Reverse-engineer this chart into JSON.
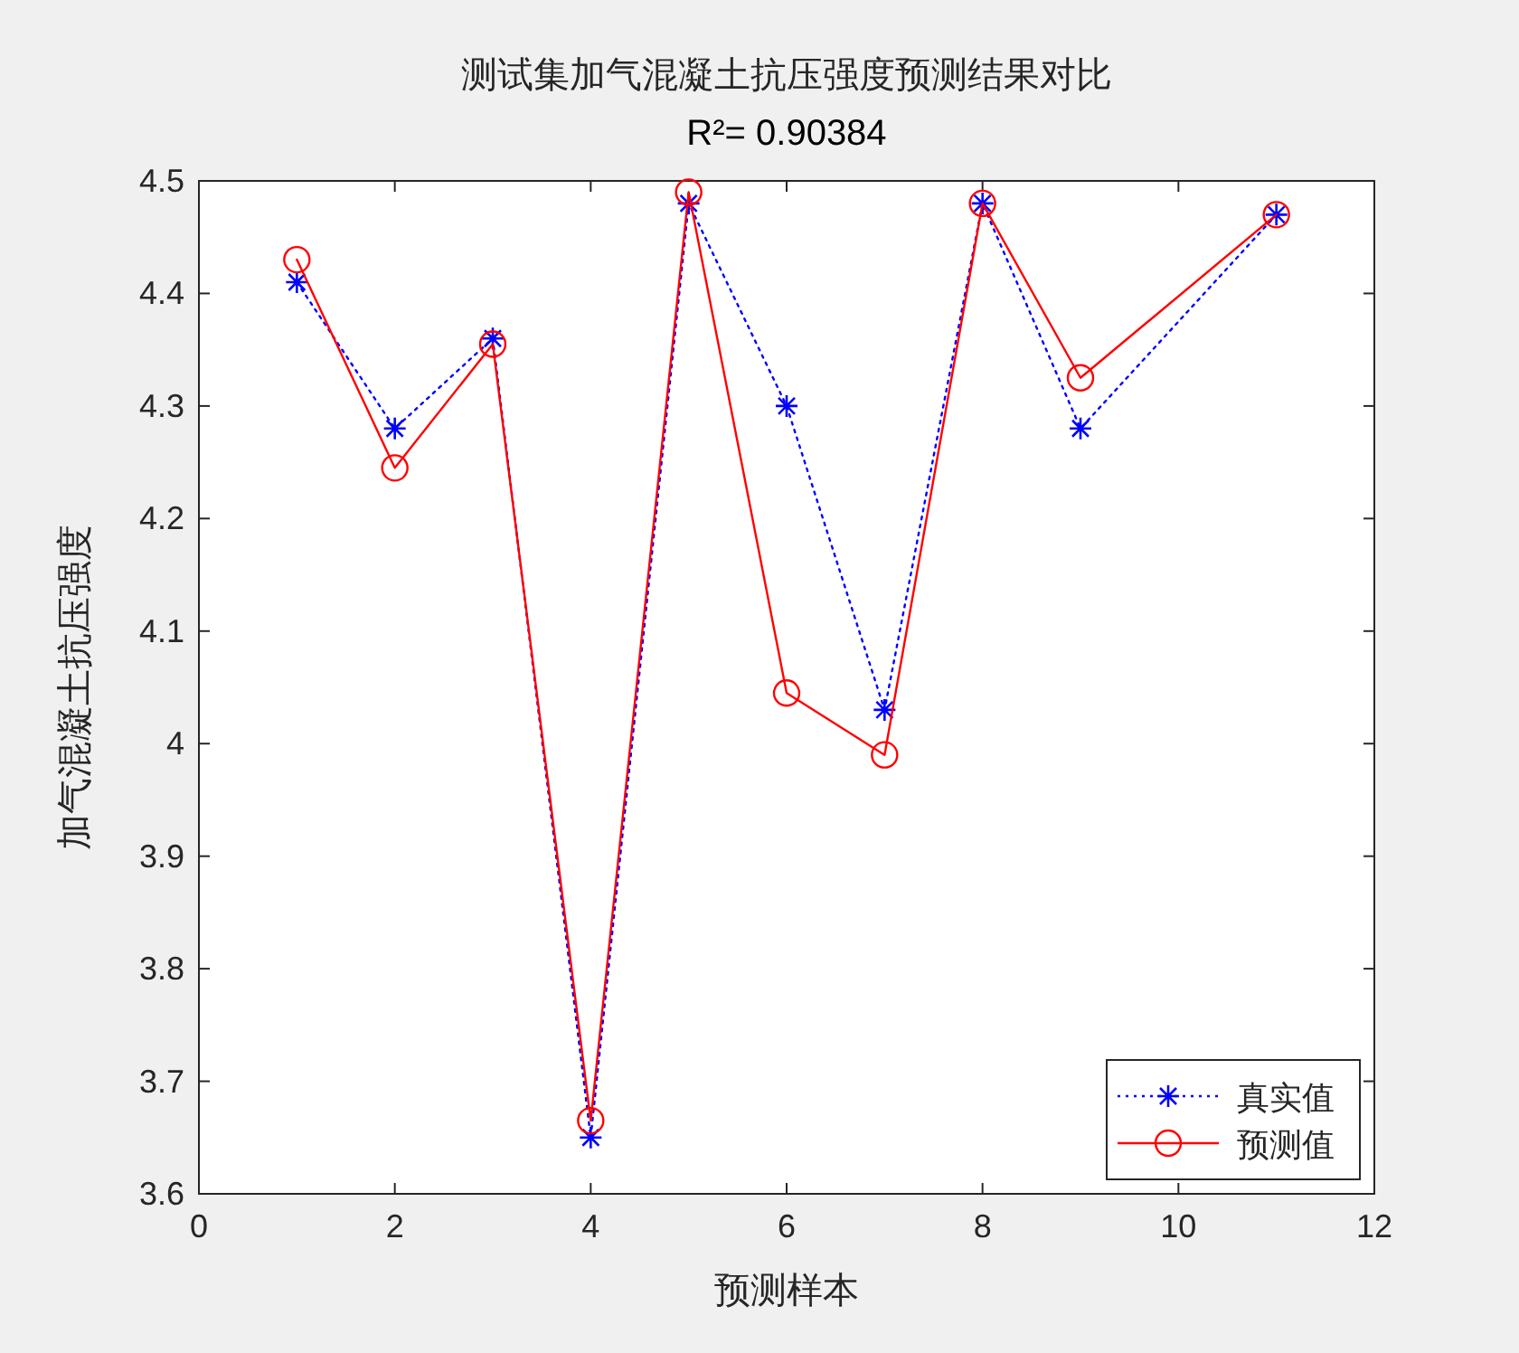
{
  "chart_data": {
    "type": "line",
    "title": "测试集加气混凝土抗压强度预测结果对比",
    "subtitle": "R²= 0.90384",
    "xlabel": "预测样本",
    "ylabel": "加气混凝土抗压强度",
    "x": [
      1,
      2,
      3,
      4,
      5,
      6,
      7,
      8,
      9,
      11
    ],
    "series": [
      {
        "name": "真实值",
        "color": "#0000ff",
        "marker": "cross",
        "line_style": "dotted",
        "values": [
          4.41,
          4.28,
          4.36,
          3.65,
          4.48,
          4.3,
          4.03,
          4.48,
          4.28,
          4.47
        ]
      },
      {
        "name": "预测值",
        "color": "#ff0000",
        "marker": "circle",
        "line_style": "solid",
        "values": [
          4.43,
          4.245,
          4.355,
          3.665,
          4.49,
          4.045,
          3.99,
          4.48,
          4.325,
          4.47
        ]
      }
    ],
    "xlim": [
      0,
      12
    ],
    "xticks": [
      0,
      2,
      4,
      6,
      8,
      10,
      12
    ],
    "ylim": [
      3.6,
      4.5
    ],
    "yticks": [
      3.6,
      3.7,
      3.8,
      3.9,
      4,
      4.1,
      4.2,
      4.3,
      4.4,
      4.5
    ],
    "grid": false,
    "legend": "bottom right"
  }
}
